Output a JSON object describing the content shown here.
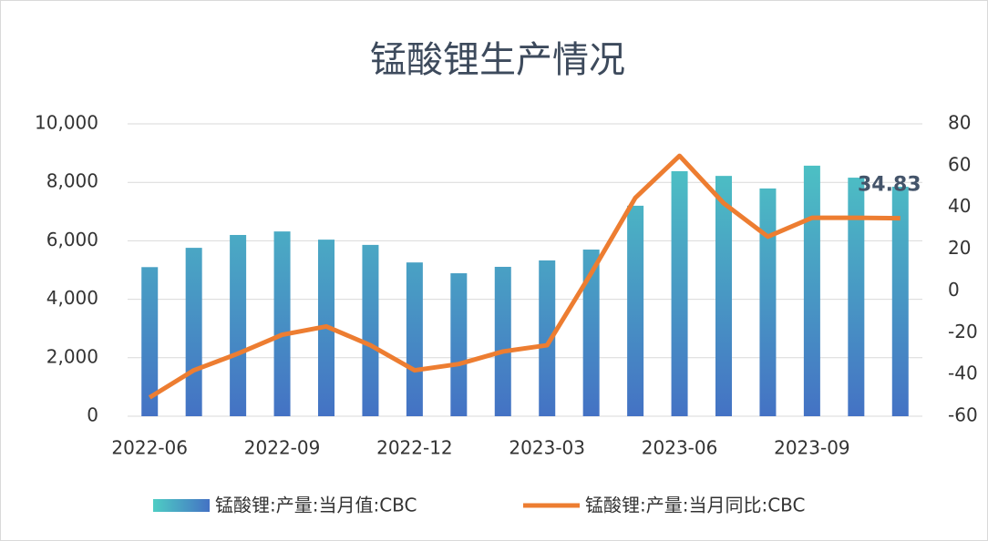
{
  "chart_data": {
    "type": "bar-line",
    "title": "锰酸锂生产情况",
    "categories": [
      "2022-06",
      null,
      null,
      "2022-09",
      null,
      null,
      "2022-12",
      null,
      null,
      "2023-03",
      null,
      null,
      "2023-06",
      null,
      null,
      "2023-09",
      null,
      null
    ],
    "series": [
      {
        "name": "锰酸锂:产量:当月值:CBC",
        "type": "bar",
        "color": [
          "#4ecdc4",
          "#4472c4"
        ],
        "values": [
          5100,
          5760,
          6200,
          6320,
          6040,
          5860,
          5260,
          4890,
          5110,
          5330,
          5700,
          7200,
          8380,
          8220,
          7790,
          8570,
          8160,
          7850
        ]
      },
      {
        "name": "锰酸锂:产量:当月同比:CBC",
        "type": "line",
        "axis": "y2",
        "color": "#ed7d31",
        "values": [
          -51,
          -38,
          -30,
          -21,
          -17,
          -26,
          -38,
          -35,
          -29,
          -26,
          8.5,
          44.6,
          64.7,
          42,
          26,
          35,
          35,
          34.83
        ]
      }
    ],
    "ylim": [
      0,
      10000
    ],
    "yticks": [
      0,
      {
        "value": 2000,
        "label": "2,000"
      },
      {
        "value": 4000,
        "label": "4,000"
      },
      {
        "value": 6000,
        "label": "6,000"
      },
      {
        "value": 8000,
        "label": "8,000"
      },
      {
        "value": 10000,
        "label": "10,000"
      }
    ],
    "y2lim": [
      -60,
      80
    ],
    "y2ticks": [
      -60,
      -40,
      -20,
      0,
      20,
      40,
      60,
      80
    ],
    "grid": true,
    "legend": "bottom"
  }
}
